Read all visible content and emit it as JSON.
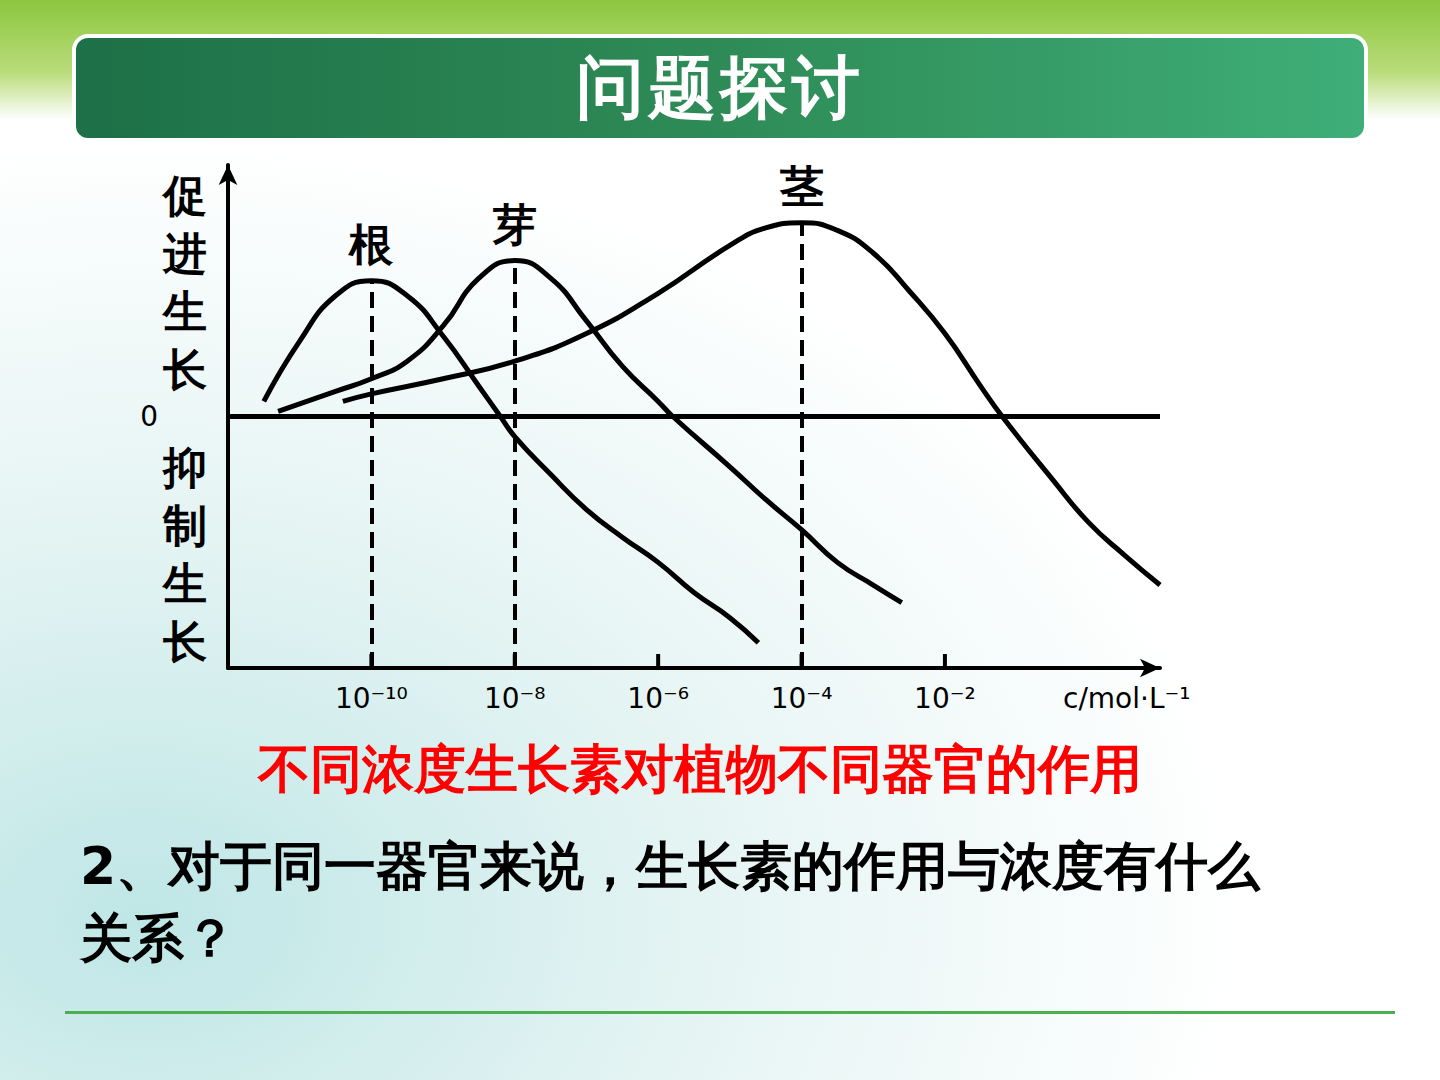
{
  "header": "问题探讨",
  "question": "2、对于同一器官来说，生长素的作用与浓度有什么关系？",
  "chart_data": {
    "type": "line",
    "title": "不同浓度生长素对植物不同器官的作用",
    "xlabel": "c/mol·L⁻¹",
    "ylabel_positive": "促进生长",
    "ylabel_negative": "抑制生长",
    "log": "x",
    "grid": false,
    "xlim": [
      1e-12,
      10
    ],
    "xticks": [
      {
        "value": 1e-10,
        "label": "10⁻¹⁰"
      },
      {
        "value": 1e-08,
        "label": "10⁻⁸"
      },
      {
        "value": 1e-06,
        "label": "10⁻⁶"
      },
      {
        "value": 0.0001,
        "label": "10⁻⁴"
      },
      {
        "value": 0.01,
        "label": "10⁻²"
      }
    ],
    "ylim": [
      -1,
      1
    ],
    "yticks": [
      0
    ],
    "baseline": 0,
    "peak_lines": [
      {
        "x": 1e-10,
        "y": 0.54
      },
      {
        "x": 1e-08,
        "y": 0.62
      },
      {
        "x": 0.0001,
        "y": 0.77
      }
    ],
    "series": [
      {
        "name": "根",
        "color": "#000000",
        "line_style": "solid",
        "x": [
          3.16e-12,
          1e-11,
          3.16e-11,
          1e-10,
          3.16e-10,
          1e-09,
          3.16e-09,
          6.3e-09,
          1e-08,
          3.16e-08,
          1e-07,
          3.16e-07,
          1e-06,
          3.16e-06,
          1e-05,
          2.5e-05
        ],
        "values": [
          0.06,
          0.3,
          0.48,
          0.54,
          0.48,
          0.32,
          0.12,
          0,
          -0.08,
          -0.23,
          -0.37,
          -0.48,
          -0.58,
          -0.7,
          -0.8,
          -0.9
        ]
      },
      {
        "name": "芽",
        "color": "#000000",
        "line_style": "solid",
        "x": [
          5e-12,
          3.16e-11,
          1e-10,
          3.16e-10,
          1e-09,
          3.16e-09,
          1e-08,
          3.16e-08,
          1e-07,
          3.16e-07,
          1e-06,
          1.6e-06,
          1e-05,
          3.16e-05,
          0.0001,
          0.000316,
          0.001,
          0.0025
        ],
        "values": [
          0.02,
          0.1,
          0.15,
          0.22,
          0.36,
          0.55,
          0.62,
          0.55,
          0.38,
          0.2,
          0.06,
          0,
          -0.2,
          -0.33,
          -0.45,
          -0.58,
          -0.67,
          -0.74
        ]
      },
      {
        "name": "茎",
        "color": "#000000",
        "line_style": "solid",
        "x": [
          4e-11,
          1e-10,
          1e-09,
          1e-08,
          1e-07,
          1e-06,
          1e-05,
          3.16e-05,
          0.0001,
          0.000316,
          0.001,
          0.00316,
          0.01,
          0.0316,
          0.063,
          0.316,
          1,
          3.16,
          10
        ],
        "values": [
          0.06,
          0.09,
          0.15,
          0.22,
          0.33,
          0.49,
          0.68,
          0.75,
          0.77,
          0.74,
          0.65,
          0.5,
          0.33,
          0.12,
          0,
          -0.25,
          -0.42,
          -0.55,
          -0.67
        ]
      }
    ]
  }
}
